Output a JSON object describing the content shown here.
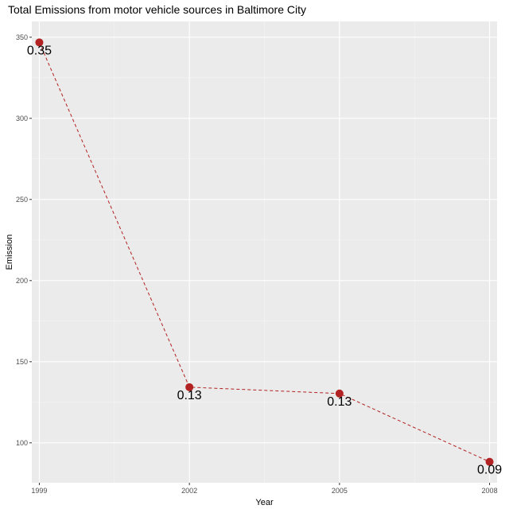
{
  "chart_data": {
    "type": "line",
    "title": "Total Emissions from motor vehicle sources in Baltimore City",
    "xlabel": "Year",
    "ylabel": "Emission",
    "x": [
      1999,
      2002,
      2005,
      2008
    ],
    "series": [
      {
        "values": [
          346.8,
          134.3,
          130.4,
          88.3
        ],
        "labels": [
          "0.35",
          "0.13",
          "0.13",
          "0.09"
        ],
        "color": "#b22222",
        "line_style": "dashed"
      }
    ],
    "x_ticks": [
      1999,
      2002,
      2005,
      2008
    ],
    "y_ticks": [
      100,
      150,
      200,
      250,
      300,
      350
    ],
    "xlim": [
      1998.85,
      2008.15
    ],
    "ylim": [
      75.4,
      359.7
    ],
    "grid": true,
    "background": "#ebebeb",
    "legend": "none"
  }
}
